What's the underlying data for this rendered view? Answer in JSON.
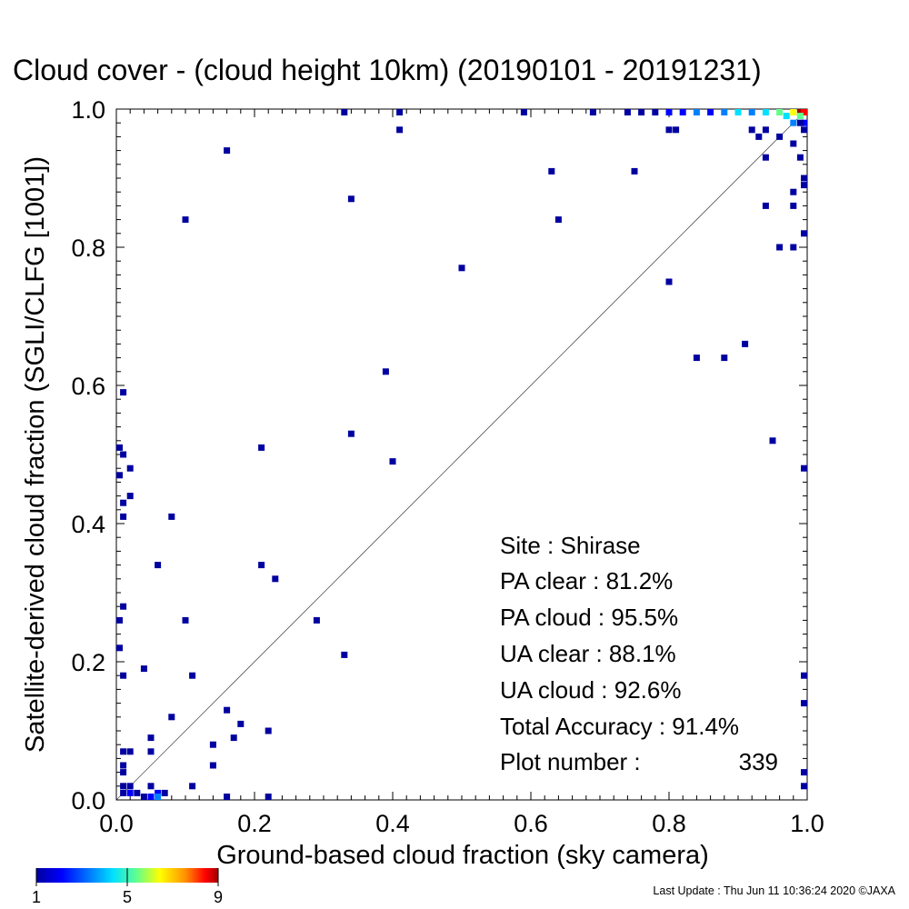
{
  "chart_data": {
    "type": "scatter",
    "title": "Cloud cover - (cloud height 10km)  (20190101 - 20191231)",
    "xlabel": "Ground-based cloud fraction (sky camera)",
    "ylabel": "Satellite-derived cloud fraction (SGLI/CLFG [1001])",
    "xlim": [
      0,
      1
    ],
    "ylim": [
      0,
      1
    ],
    "x_ticks": [
      "0.0",
      "0.2",
      "0.4",
      "0.6",
      "0.8",
      "1.0"
    ],
    "y_ticks": [
      "0.0",
      "0.2",
      "0.4",
      "0.6",
      "0.8",
      "1.0"
    ],
    "diagonal_line": true,
    "grid": false,
    "colorbar": {
      "min": 1,
      "max": 9,
      "tick_labels": [
        "1",
        "5",
        "9"
      ],
      "colors": [
        "#0000a0",
        "#0000ff",
        "#0080ff",
        "#00e0ff",
        "#60ff90",
        "#ffff00",
        "#ff9000",
        "#ff0000",
        "#a00000"
      ]
    },
    "points": [
      [
        0.0,
        0.51,
        1
      ],
      [
        0.0,
        0.47,
        1
      ],
      [
        0.0,
        0.26,
        1
      ],
      [
        0.0,
        0.22,
        1
      ],
      [
        0.01,
        0.59,
        1
      ],
      [
        0.01,
        0.5,
        1
      ],
      [
        0.02,
        0.48,
        1
      ],
      [
        0.02,
        0.44,
        1
      ],
      [
        0.01,
        0.43,
        1
      ],
      [
        0.01,
        0.41,
        1
      ],
      [
        0.01,
        0.28,
        1
      ],
      [
        0.01,
        0.18,
        1
      ],
      [
        0.01,
        0.07,
        1
      ],
      [
        0.02,
        0.07,
        1
      ],
      [
        0.01,
        0.05,
        1
      ],
      [
        0.01,
        0.04,
        1
      ],
      [
        0.01,
        0.02,
        1
      ],
      [
        0.02,
        0.02,
        1
      ],
      [
        0.01,
        0.01,
        1
      ],
      [
        0.02,
        0.01,
        2
      ],
      [
        0.03,
        0.01,
        1
      ],
      [
        0.04,
        0.19,
        1
      ],
      [
        0.04,
        0.0,
        1
      ],
      [
        0.05,
        0.0,
        2
      ],
      [
        0.05,
        0.02,
        1
      ],
      [
        0.06,
        0.01,
        2
      ],
      [
        0.07,
        0.01,
        1
      ],
      [
        0.06,
        0.0,
        3
      ],
      [
        0.05,
        0.09,
        1
      ],
      [
        0.05,
        0.07,
        1
      ],
      [
        0.06,
        0.34,
        1
      ],
      [
        0.08,
        0.41,
        1
      ],
      [
        0.08,
        0.12,
        1
      ],
      [
        0.1,
        0.84,
        1
      ],
      [
        0.1,
        0.26,
        1
      ],
      [
        0.11,
        0.18,
        1
      ],
      [
        0.11,
        0.02,
        1
      ],
      [
        0.14,
        0.08,
        1
      ],
      [
        0.14,
        0.05,
        1
      ],
      [
        0.16,
        0.94,
        1
      ],
      [
        0.16,
        0.13,
        1
      ],
      [
        0.16,
        0.0,
        1
      ],
      [
        0.17,
        0.09,
        1
      ],
      [
        0.18,
        0.11,
        1
      ],
      [
        0.21,
        0.51,
        1
      ],
      [
        0.21,
        0.34,
        1
      ],
      [
        0.22,
        0.1,
        1
      ],
      [
        0.22,
        0.0,
        1
      ],
      [
        0.23,
        0.32,
        1
      ],
      [
        0.29,
        0.26,
        1
      ],
      [
        0.33,
        1.0,
        1
      ],
      [
        0.33,
        0.21,
        1
      ],
      [
        0.34,
        0.87,
        1
      ],
      [
        0.34,
        0.53,
        1
      ],
      [
        0.39,
        0.62,
        1
      ],
      [
        0.4,
        0.49,
        1
      ],
      [
        0.41,
        1.0,
        1
      ],
      [
        0.41,
        0.97,
        1
      ],
      [
        0.5,
        0.77,
        1
      ],
      [
        0.59,
        1.0,
        1
      ],
      [
        0.63,
        0.91,
        1
      ],
      [
        0.64,
        0.84,
        1
      ],
      [
        0.69,
        1.0,
        1
      ],
      [
        0.75,
        0.91,
        1
      ],
      [
        0.74,
        1.0,
        1
      ],
      [
        0.76,
        1.0,
        1
      ],
      [
        0.78,
        1.0,
        1
      ],
      [
        0.8,
        0.97,
        1
      ],
      [
        0.81,
        0.97,
        1
      ],
      [
        0.8,
        0.75,
        1
      ],
      [
        0.84,
        0.64,
        1
      ],
      [
        0.88,
        0.64,
        1
      ],
      [
        0.91,
        0.66,
        1
      ],
      [
        0.8,
        1.0,
        2
      ],
      [
        0.82,
        1.0,
        2
      ],
      [
        0.84,
        1.0,
        3
      ],
      [
        0.86,
        1.0,
        2
      ],
      [
        0.88,
        1.0,
        3
      ],
      [
        0.9,
        1.0,
        4
      ],
      [
        0.92,
        1.0,
        3
      ],
      [
        0.94,
        1.0,
        4
      ],
      [
        0.96,
        1.0,
        5
      ],
      [
        0.98,
        1.0,
        6
      ],
      [
        0.99,
        1.0,
        9
      ],
      [
        1.0,
        1.0,
        8
      ],
      [
        0.97,
        0.99,
        4
      ],
      [
        0.99,
        0.99,
        5
      ],
      [
        0.98,
        0.98,
        3
      ],
      [
        1.0,
        0.98,
        2
      ],
      [
        0.92,
        0.97,
        1
      ],
      [
        0.93,
        0.96,
        1
      ],
      [
        0.94,
        0.97,
        1
      ],
      [
        0.96,
        0.96,
        1
      ],
      [
        0.98,
        0.95,
        1
      ],
      [
        0.94,
        0.93,
        1
      ],
      [
        0.99,
        0.93,
        1
      ],
      [
        0.99,
        0.98,
        1
      ],
      [
        1.0,
        0.97,
        1
      ],
      [
        0.94,
        0.86,
        1
      ],
      [
        0.96,
        0.8,
        1
      ],
      [
        0.98,
        0.8,
        1
      ],
      [
        0.98,
        0.86,
        1
      ],
      [
        0.98,
        0.88,
        1
      ],
      [
        1.0,
        0.89,
        1
      ],
      [
        1.0,
        0.9,
        1
      ],
      [
        1.0,
        0.82,
        1
      ],
      [
        0.95,
        0.52,
        1
      ],
      [
        1.0,
        0.48,
        1
      ],
      [
        1.0,
        0.18,
        1
      ],
      [
        1.0,
        0.14,
        1
      ],
      [
        1.0,
        0.04,
        1
      ],
      [
        1.0,
        0.02,
        1
      ]
    ]
  },
  "stats": {
    "site": "Site : Shirase",
    "pa_clear": "PA clear :  81.2%",
    "pa_cloud": "PA cloud :  95.5%",
    "ua_clear": "UA clear :  88.1%",
    "ua_cloud": "UA cloud :  92.6%",
    "total": "Total Accuracy :  91.4%",
    "plot_label": "Plot number :",
    "plot_value": "339"
  },
  "footer": "Last Update : Thu Jun 11 10:36:24 2020  ©JAXA"
}
